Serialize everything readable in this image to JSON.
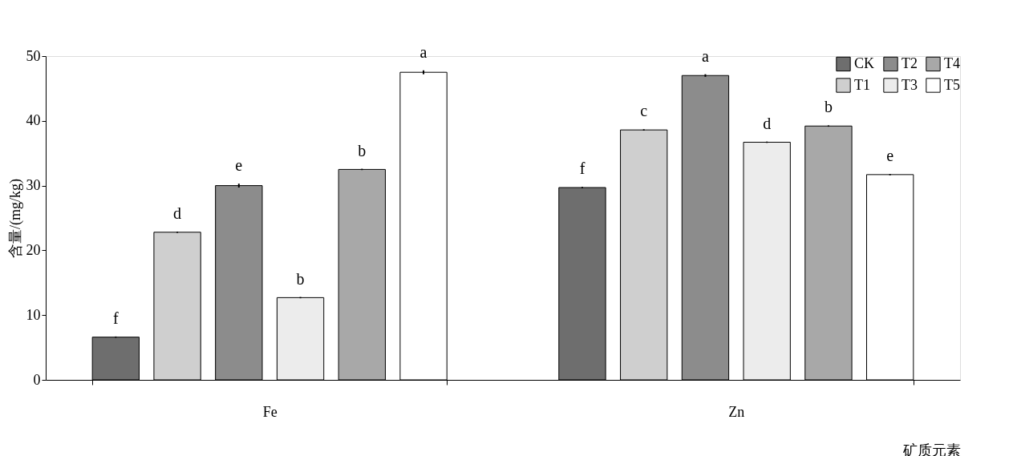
{
  "chart_data": {
    "type": "bar",
    "ylabel": "含量/(mg/kg)",
    "xlabel": "矿质元素",
    "categories": [
      "Fe",
      "Zn"
    ],
    "ylim": [
      0,
      50
    ],
    "yticks": [
      0,
      10,
      20,
      30,
      40,
      50
    ],
    "grid": false,
    "legend": "top right",
    "series": [
      {
        "name": "CK",
        "color": "#6e6e6e",
        "values": [
          6.6,
          29.7
        ],
        "errors": [
          0.1,
          0.1
        ],
        "value_labels": [
          "f",
          "f"
        ]
      },
      {
        "name": "T1",
        "color": "#cfcfcf",
        "values": [
          22.8,
          38.6
        ],
        "errors": [
          0.1,
          0.1
        ],
        "value_labels": [
          "d",
          "c"
        ]
      },
      {
        "name": "T2",
        "color": "#8c8c8c",
        "values": [
          30.0,
          47.0
        ],
        "errors": [
          0.3,
          0.2
        ],
        "value_labels": [
          "e",
          "a"
        ]
      },
      {
        "name": "T3",
        "color": "#ececec",
        "values": [
          12.7,
          36.7
        ],
        "errors": [
          0.1,
          0.1
        ],
        "value_labels": [
          "b",
          "d"
        ]
      },
      {
        "name": "T4",
        "color": "#a8a8a8",
        "values": [
          32.5,
          39.2
        ],
        "errors": [
          0.1,
          0.1
        ],
        "value_labels": [
          "b",
          "b"
        ]
      },
      {
        "name": "T5",
        "color": "#ffffff",
        "values": [
          47.5,
          31.7
        ],
        "errors": [
          0.3,
          0.1
        ],
        "value_labels": [
          "a",
          "e"
        ]
      }
    ]
  }
}
